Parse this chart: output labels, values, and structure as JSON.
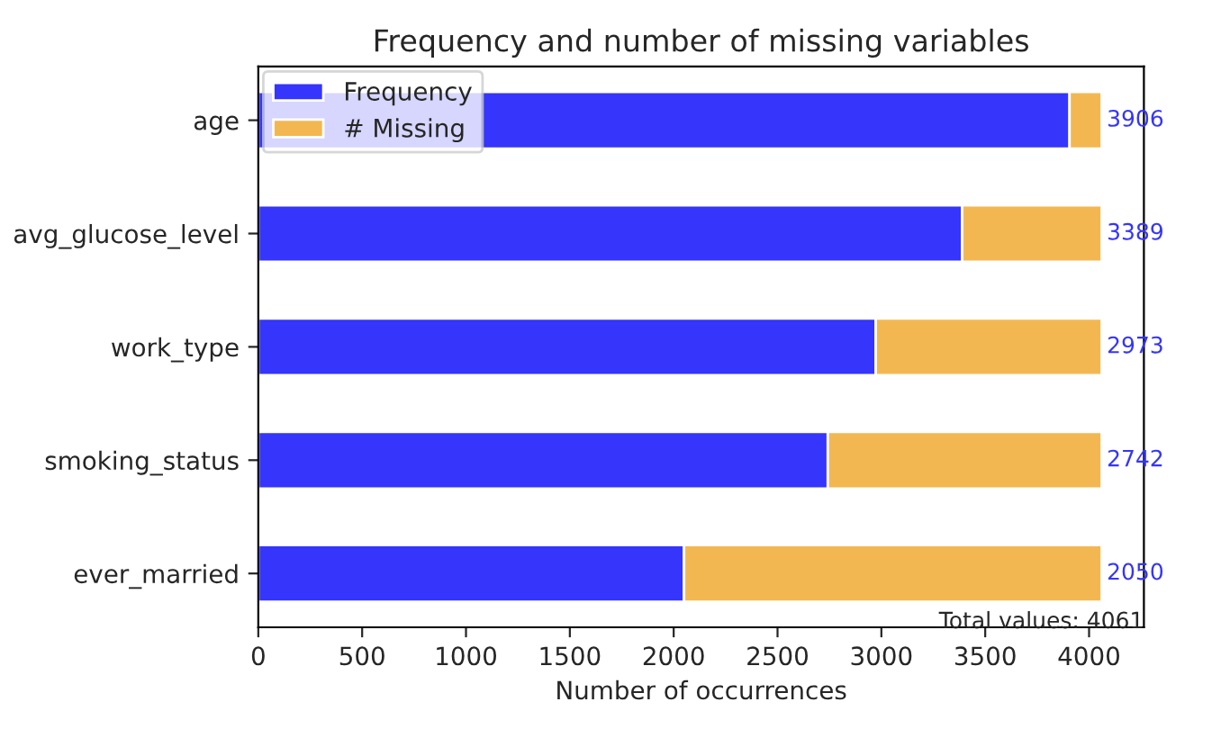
{
  "chart_data": {
    "type": "bar",
    "orientation": "horizontal",
    "stacked": true,
    "title": "Frequency and number of missing variables",
    "xlabel": "Number of occurrences",
    "categories": [
      "age",
      "avg_glucose_level",
      "work_type",
      "smoking_status",
      "ever_married"
    ],
    "series": [
      {
        "name": "Frequency",
        "color": "#3535fb",
        "values": [
          3906,
          3389,
          2973,
          2742,
          2050
        ]
      },
      {
        "name": "# Missing",
        "color": "#f3b752",
        "values": [
          155,
          672,
          1088,
          1319,
          2011
        ]
      }
    ],
    "xlim": [
      0,
      4264
    ],
    "xticks": [
      0,
      500,
      1000,
      1500,
      2000,
      2500,
      3000,
      3500,
      4000
    ],
    "annotations": [
      "3906",
      "3389",
      "2973",
      "2742",
      "2050",
      "Total values: 4061"
    ],
    "legend": "top left",
    "grid": false
  }
}
